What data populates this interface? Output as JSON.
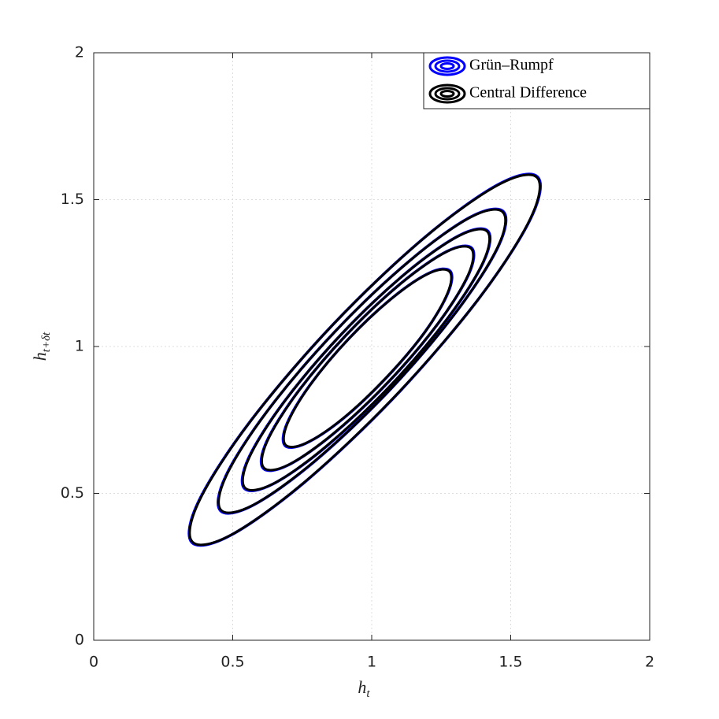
{
  "chart_data": {
    "type": "contour",
    "x_label": "h",
    "x_label_sub": "t",
    "y_label": "h",
    "y_label_sub": "t+δt",
    "xlim": [
      0,
      2
    ],
    "ylim": [
      0,
      2
    ],
    "xticks": [
      0,
      0.5,
      1,
      1.5,
      2
    ],
    "yticks": [
      0,
      0.5,
      1,
      1.5,
      2
    ],
    "grid": true,
    "legend": "upper right",
    "series": [
      {
        "name": "Grün–Rumpf",
        "color": "#0000ff",
        "contours": [
          {
            "x": [
              1.597,
              1.456,
              1.185,
              0.858,
              0.563,
              0.378,
              0.353,
              0.494,
              0.765,
              1.092,
              1.387,
              1.572
            ],
            "y": [
              1.577,
              1.552,
              1.367,
              1.072,
              0.745,
              0.474,
              0.333,
              0.358,
              0.543,
              0.838,
              1.165,
              1.436
            ]
          },
          {
            "x": [
              1.474,
              1.356,
              1.134,
              0.866,
              0.625,
              0.475,
              0.456,
              0.574,
              0.796,
              1.064,
              1.305,
              1.456
            ],
            "y": [
              1.459,
              1.441,
              1.29,
              1.049,
              0.781,
              0.559,
              0.441,
              0.46,
              0.61,
              0.851,
              1.119,
              1.342
            ]
          },
          {
            "x": [
              1.418,
              1.315,
              1.123,
              0.892,
              0.685,
              0.557,
              0.542,
              0.645,
              0.837,
              1.068,
              1.275,
              1.403
            ],
            "y": [
              1.393,
              1.378,
              1.25,
              1.043,
              0.812,
              0.62,
              0.517,
              0.532,
              0.66,
              0.867,
              1.098,
              1.29
            ]
          },
          {
            "x": [
              1.36,
              1.271,
              1.105,
              0.907,
              0.73,
              0.621,
              0.61,
              0.699,
              0.865,
              1.063,
              1.24,
              1.349
            ],
            "y": [
              1.335,
              1.324,
              1.215,
              1.038,
              0.84,
              0.674,
              0.585,
              0.596,
              0.705,
              0.882,
              1.08,
              1.246
            ]
          },
          {
            "x": [
              1.282,
              1.209,
              1.076,
              0.918,
              0.779,
              0.695,
              0.688,
              0.762,
              0.895,
              1.052,
              1.192,
              1.275
            ],
            "y": [
              1.257,
              1.251,
              1.167,
              1.027,
              0.87,
              0.737,
              0.663,
              0.67,
              0.753,
              0.893,
              1.05,
              1.184
            ]
          }
        ]
      },
      {
        "name": "Central Difference",
        "color": "#000000",
        "contours": [
          {
            "x": [
              1.595,
              1.455,
              1.184,
              0.858,
              0.564,
              0.38,
              0.355,
              0.495,
              0.765,
              1.091,
              1.386,
              1.57
            ],
            "y": [
              1.575,
              1.55,
              1.366,
              1.072,
              0.746,
              0.475,
              0.335,
              0.359,
              0.544,
              0.838,
              1.164,
              1.434
            ]
          },
          {
            "x": [
              1.472,
              1.355,
              1.133,
              0.866,
              0.626,
              0.477,
              0.458,
              0.575,
              0.796,
              1.063,
              1.304,
              1.454
            ],
            "y": [
              1.457,
              1.44,
              1.289,
              1.049,
              0.782,
              0.56,
              0.443,
              0.461,
              0.611,
              0.851,
              1.118,
              1.34
            ]
          },
          {
            "x": [
              1.416,
              1.314,
              1.122,
              0.892,
              0.686,
              0.559,
              0.544,
              0.646,
              0.837,
              1.067,
              1.274,
              1.401
            ],
            "y": [
              1.391,
              1.377,
              1.249,
              1.043,
              0.813,
              0.621,
              0.519,
              0.533,
              0.661,
              0.867,
              1.097,
              1.288
            ]
          },
          {
            "x": [
              1.358,
              1.27,
              1.104,
              0.907,
              0.731,
              0.623,
              0.612,
              0.7,
              0.865,
              1.062,
              1.239,
              1.347
            ],
            "y": [
              1.333,
              1.323,
              1.214,
              1.038,
              0.841,
              0.675,
              0.587,
              0.597,
              0.706,
              0.882,
              1.079,
              1.244
            ]
          },
          {
            "x": [
              1.28,
              1.208,
              1.075,
              0.918,
              0.78,
              0.697,
              0.69,
              0.763,
              0.895,
              1.051,
              1.191,
              1.273
            ],
            "y": [
              1.255,
              1.25,
              1.166,
              1.027,
              0.871,
              0.738,
              0.665,
              0.671,
              0.754,
              0.893,
              1.049,
              1.182
            ]
          }
        ]
      }
    ]
  }
}
